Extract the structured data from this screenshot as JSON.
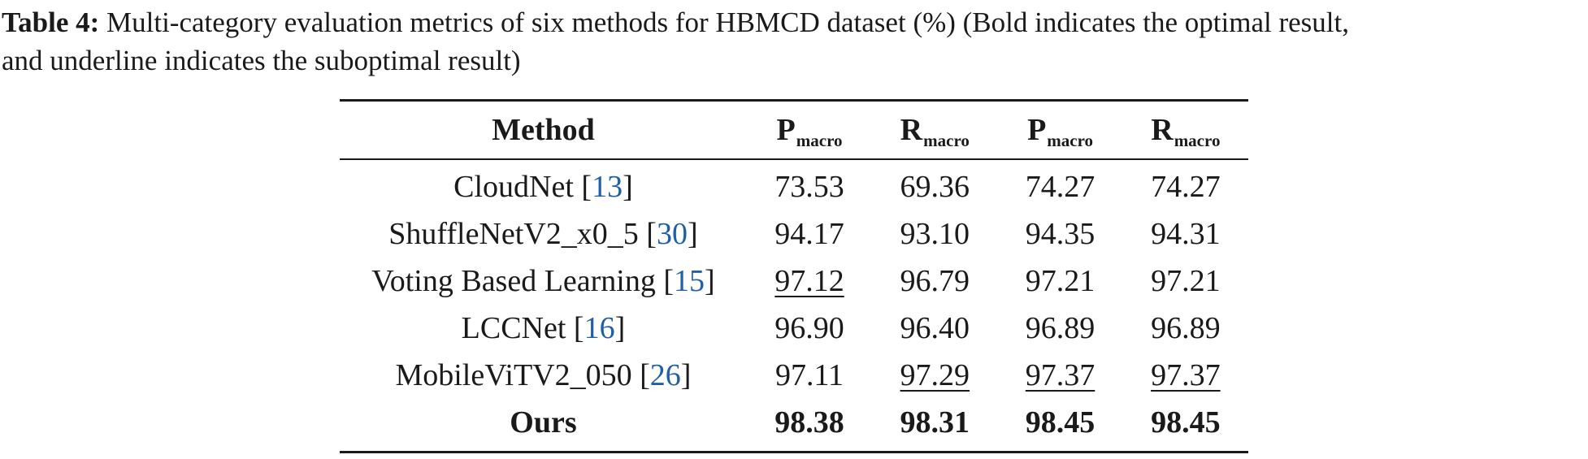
{
  "caption": {
    "label": "Table 4:",
    "line1": "Multi-category evaluation metrics of six methods for HBMCD dataset (%) (Bold indicates the optimal result,",
    "line2": "and underline indicates the suboptimal result)"
  },
  "table": {
    "header": {
      "method": "Method",
      "cols": [
        {
          "main": "P",
          "sub": "macro"
        },
        {
          "main": "R",
          "sub": "macro"
        },
        {
          "main": "P",
          "sub": "macro"
        },
        {
          "main": "R",
          "sub": "macro"
        }
      ]
    },
    "rows": [
      {
        "method": "CloudNet",
        "ref": "13",
        "values": [
          "73.53",
          "69.36",
          "74.27",
          "74.27"
        ]
      },
      {
        "method": "ShuffleNetV2_x0_5",
        "ref": "30",
        "values": [
          "94.17",
          "93.10",
          "94.35",
          "94.31"
        ]
      },
      {
        "method": "Voting Based Learning",
        "ref": "15",
        "values": [
          "97.12",
          "96.79",
          "97.21",
          "97.21"
        ]
      },
      {
        "method": "LCCNet",
        "ref": "16",
        "values": [
          "96.90",
          "96.40",
          "96.89",
          "96.89"
        ]
      },
      {
        "method": "MobileViTV2_050",
        "ref": "26",
        "values": [
          "97.11",
          "97.29",
          "97.37",
          "97.37"
        ]
      },
      {
        "method": "Ours",
        "ref": "",
        "values": [
          "98.38",
          "98.31",
          "98.45",
          "98.45"
        ]
      }
    ]
  }
}
